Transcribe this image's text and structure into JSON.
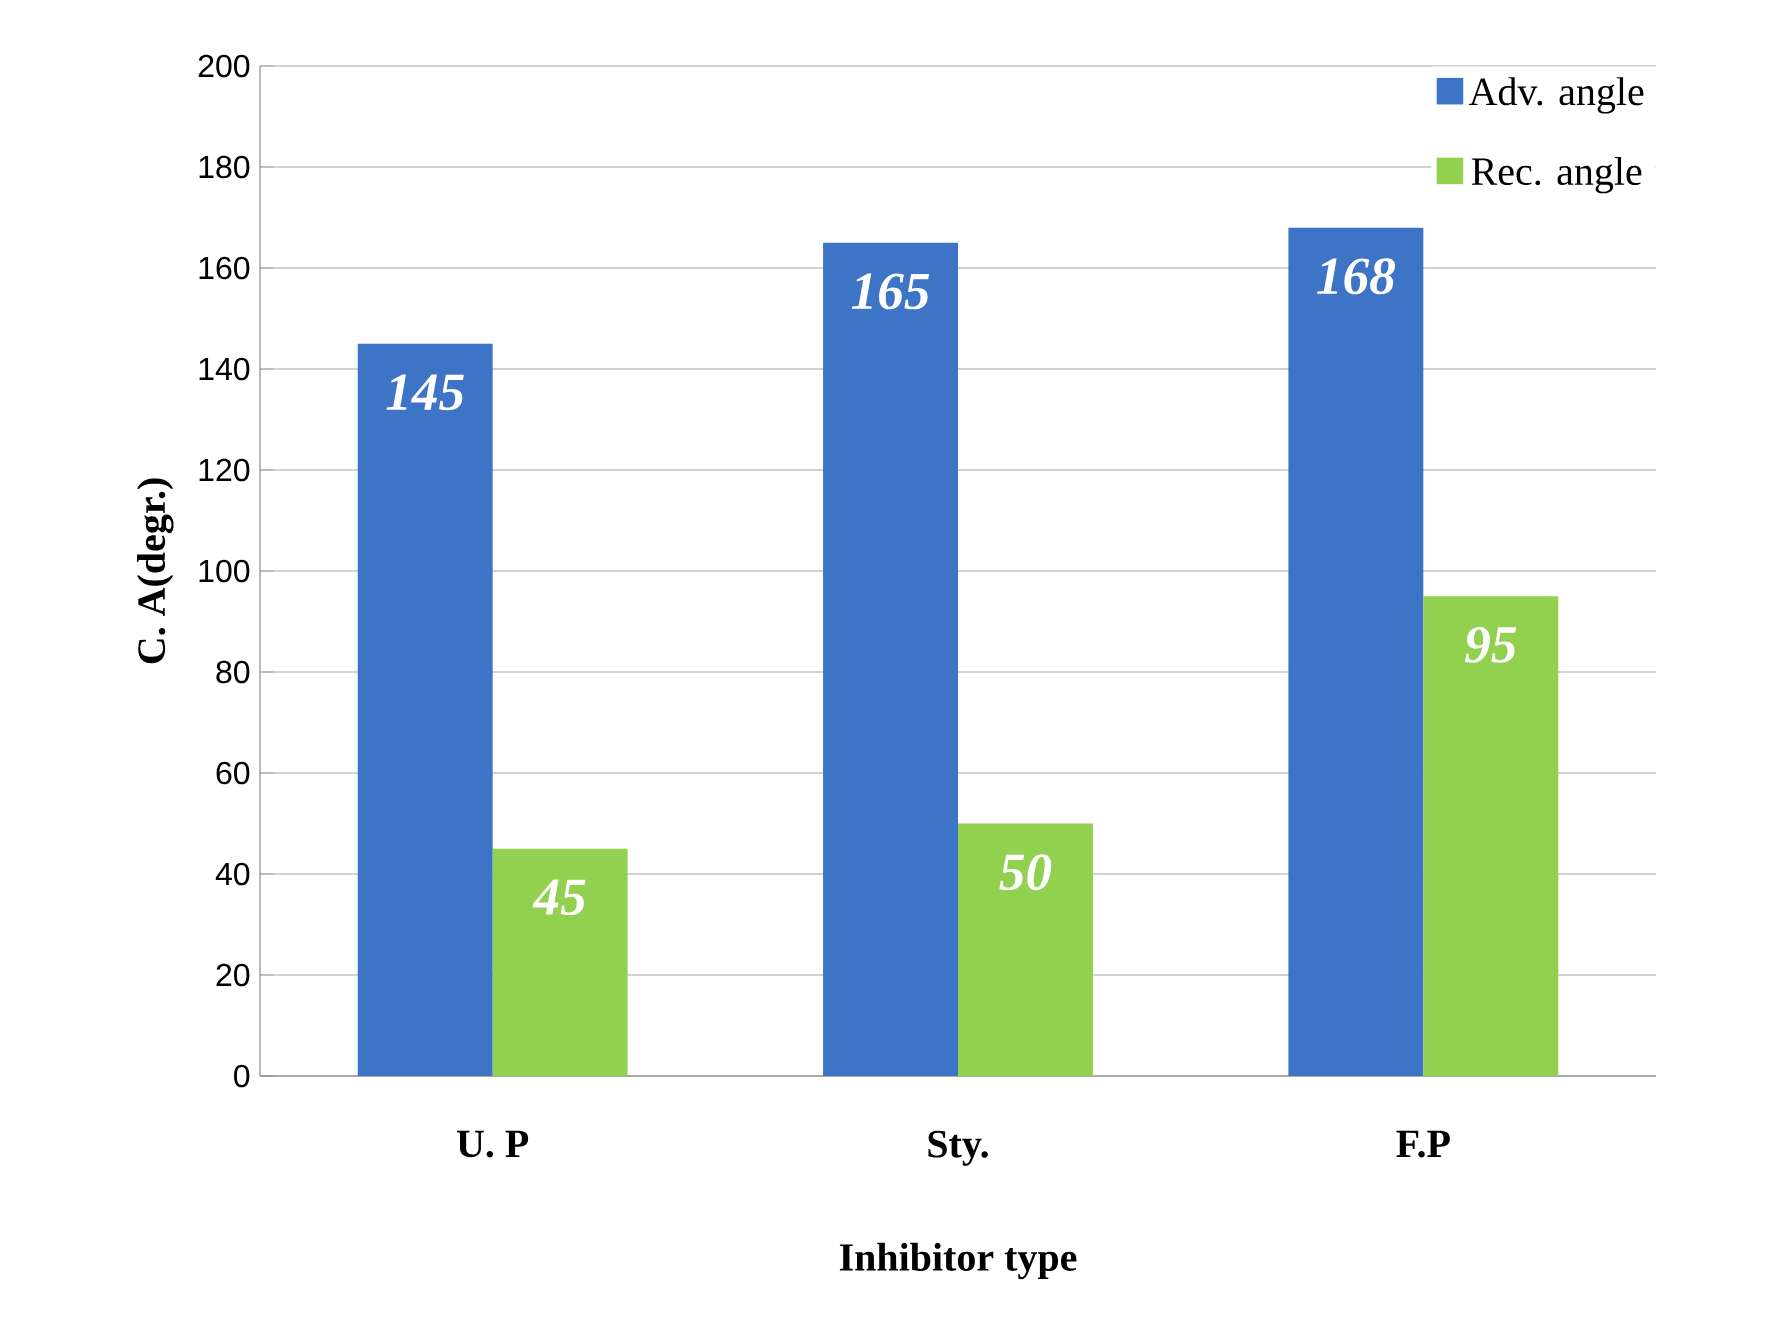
{
  "chart_data": {
    "type": "bar",
    "xlabel": "Inhibitor type",
    "ylabel": "C. A(degr.)",
    "categories": [
      "U. P",
      "Sty.",
      "F.P"
    ],
    "series": [
      {
        "name": "Adv. angle",
        "color": "#3d74c6",
        "values": [
          145,
          165,
          168
        ]
      },
      {
        "name": "Rec. angle",
        "color": "#92d050",
        "values": [
          45,
          50,
          95
        ]
      }
    ],
    "ylim": [
      0,
      200
    ],
    "yticks": [
      0,
      20,
      40,
      60,
      80,
      100,
      120,
      140,
      160,
      180,
      200
    ],
    "grid": "y",
    "legend": "top right",
    "data_labels": true
  }
}
